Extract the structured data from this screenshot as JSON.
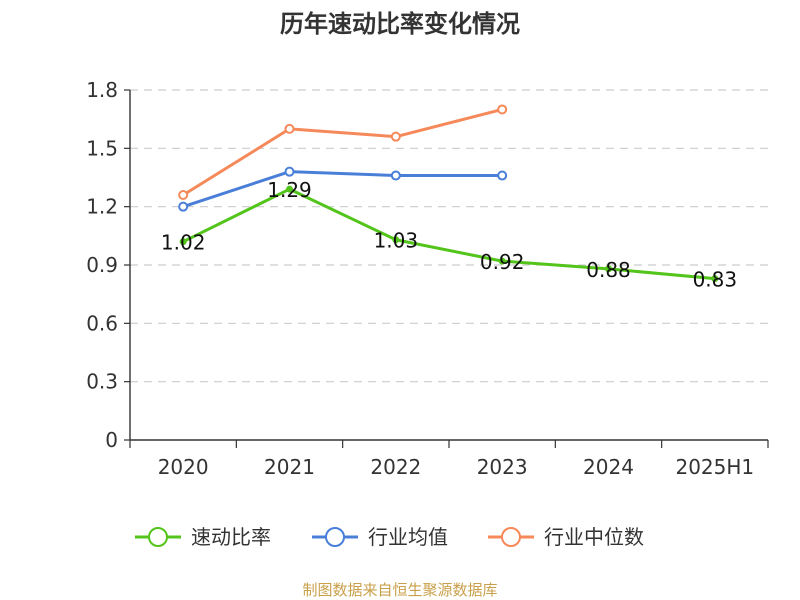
{
  "chart_data": {
    "type": "line",
    "title": "历年速动比率变化情况",
    "categories": [
      "2020",
      "2021",
      "2022",
      "2023",
      "2024",
      "2025H1"
    ],
    "y_ticks": [
      "0",
      "0.3",
      "0.6",
      "0.9",
      "1.2",
      "1.5",
      "1.8"
    ],
    "ylim": [
      0,
      1.8
    ],
    "grid": true,
    "legend_position": "bottom",
    "series": [
      {
        "name": "速动比率",
        "color": "#52c41a",
        "values": [
          1.02,
          1.29,
          1.03,
          0.92,
          0.88,
          0.83
        ],
        "labels": [
          "1.02",
          "1.29",
          "1.03",
          "0.92",
          "0.88",
          "0.83"
        ]
      },
      {
        "name": "行业均值",
        "color": "#4a7fd8",
        "values": [
          1.2,
          1.38,
          1.36,
          1.36,
          null,
          null
        ]
      },
      {
        "name": "行业中位数",
        "color": "#f5895a",
        "values": [
          1.26,
          1.6,
          1.56,
          1.7,
          null,
          null
        ]
      }
    ],
    "source": "制图数据来自恒生聚源数据库"
  }
}
